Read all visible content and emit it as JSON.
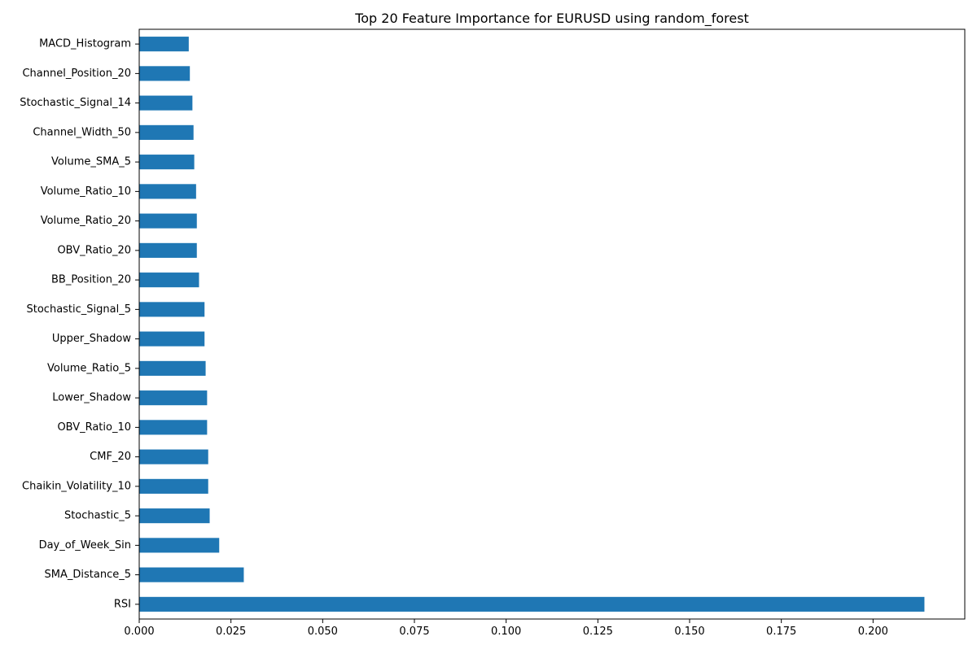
{
  "chart_data": {
    "type": "bar",
    "orientation": "horizontal",
    "title": "Top 20 Feature Importance for EURUSD using random_forest",
    "xlabel": "",
    "ylabel": "",
    "xlim": [
      0,
      0.225
    ],
    "x_ticks": [
      0,
      0.025,
      0.05,
      0.075,
      0.1,
      0.125,
      0.15,
      0.175,
      0.2
    ],
    "x_tick_labels": [
      "0.000",
      "0.025",
      "0.050",
      "0.075",
      "0.100",
      "0.125",
      "0.150",
      "0.175",
      "0.200"
    ],
    "grid": false,
    "legend": false,
    "bar_color": "#1f77b4",
    "categories": [
      "RSI",
      "SMA_Distance_5",
      "Day_of_Week_Sin",
      "Stochastic_5",
      "Chaikin_Volatility_10",
      "CMF_20",
      "OBV_Ratio_10",
      "Lower_Shadow",
      "Volume_Ratio_5",
      "Upper_Shadow",
      "Stochastic_Signal_5",
      "BB_Position_20",
      "OBV_Ratio_20",
      "Volume_Ratio_20",
      "Volume_Ratio_10",
      "Volume_SMA_5",
      "Channel_Width_50",
      "Stochastic_Signal_14",
      "Channel_Position_20",
      "MACD_Histogram"
    ],
    "values": [
      0.214,
      0.0285,
      0.0218,
      0.0192,
      0.0188,
      0.0188,
      0.0185,
      0.0185,
      0.0181,
      0.0178,
      0.0178,
      0.0163,
      0.0157,
      0.0157,
      0.0155,
      0.015,
      0.0148,
      0.0145,
      0.0138,
      0.0135
    ]
  }
}
